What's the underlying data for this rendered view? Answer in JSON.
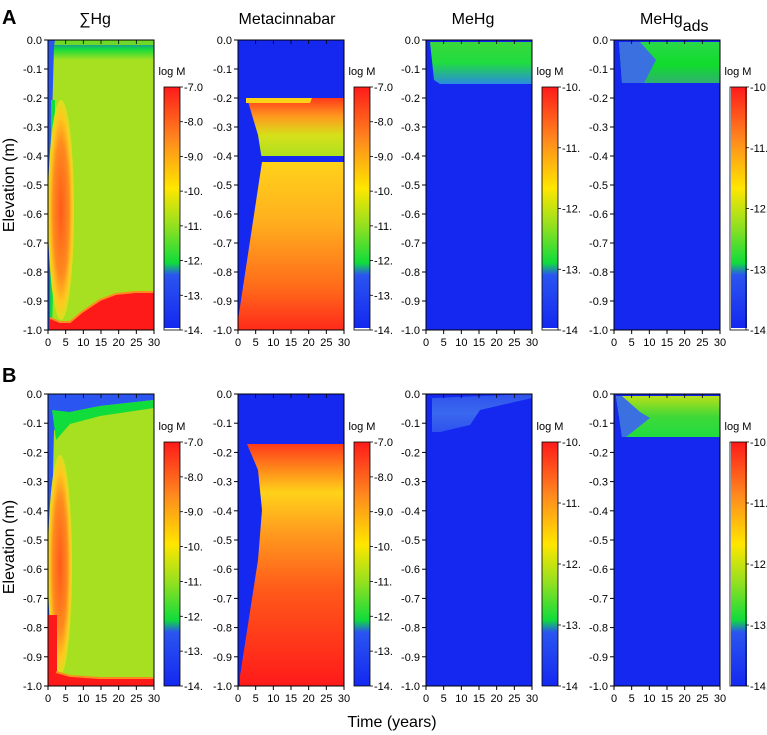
{
  "chart_data": {
    "type": "heatmap",
    "panel_labels": [
      "A",
      "B"
    ],
    "titles": [
      "∑Hg",
      "Metacinnabar",
      "MeHg",
      "MeHg"
    ],
    "title_subscript": "ads",
    "ylabel": "Elevation (m)",
    "xlabel": "Time (years)",
    "x_ticks": [
      "0",
      "5",
      "10",
      "15",
      "20",
      "25",
      "30"
    ],
    "y_ticks": [
      "0.0",
      "-0.1",
      "-0.2",
      "-0.3",
      "-0.4",
      "-0.5",
      "-0.6",
      "-0.7",
      "-0.8",
      "-0.9",
      "-1.0"
    ],
    "xlim": [
      0,
      30
    ],
    "ylim": [
      -1.0,
      0.0
    ],
    "colorbar_label": "log M",
    "colorbars": [
      {
        "range": [
          -14,
          -7
        ],
        "ticks": [
          "-7.0",
          "-8.0",
          "-9.0",
          "-10.",
          "-11.",
          "-12.",
          "-13.",
          "-14."
        ]
      },
      {
        "range": [
          -14,
          -7
        ],
        "ticks": [
          "-7.0",
          "-8.0",
          "-9.0",
          "-10.",
          "-11.",
          "-12.",
          "-13.",
          "-14."
        ]
      },
      {
        "range": [
          -14,
          -10
        ],
        "ticks": [
          "-10.",
          "-11.",
          "-12.",
          "-13.",
          "-14"
        ]
      },
      {
        "range": [
          -14,
          -10
        ],
        "ticks": [
          "-10.",
          "-11.",
          "-12.",
          "-13.",
          "-14."
        ]
      }
    ],
    "colorscale": [
      {
        "stop": 0.0,
        "color": "#1428f0"
      },
      {
        "stop": 0.22,
        "color": "#2a55f0"
      },
      {
        "stop": 0.28,
        "color": "#10dc3c"
      },
      {
        "stop": 0.42,
        "color": "#90e020"
      },
      {
        "stop": 0.58,
        "color": "#ffe600"
      },
      {
        "stop": 0.78,
        "color": "#ff8a1e"
      },
      {
        "stop": 1.0,
        "color": "#ff1a1a"
      }
    ],
    "colors": {
      "blue": "#1428f0",
      "blue_light": "#2a55f0",
      "green": "#10dc3c",
      "yellowgreen": "#a6e020",
      "yellow": "#ffe600",
      "orange": "#ff8a1e",
      "red": "#ff1a1a"
    }
  }
}
